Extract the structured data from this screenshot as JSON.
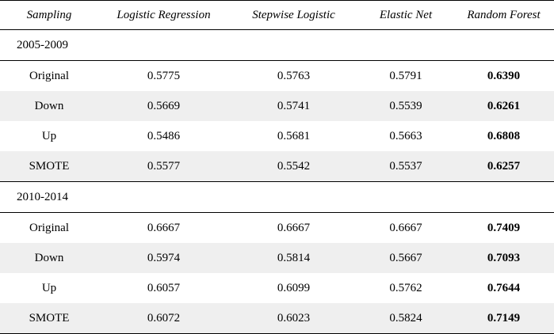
{
  "headers": [
    "Sampling",
    "Logistic Regression",
    "Stepwise Logistic",
    "Elastic Net",
    "Random Forest"
  ],
  "groups": [
    {
      "period": "2005-2009",
      "rows": [
        {
          "sampling": "Original",
          "lr": "0.5775",
          "sl": "0.5763",
          "en": "0.5791",
          "rf": "0.6390"
        },
        {
          "sampling": "Down",
          "lr": "0.5669",
          "sl": "0.5741",
          "en": "0.5539",
          "rf": "0.6261"
        },
        {
          "sampling": "Up",
          "lr": "0.5486",
          "sl": "0.5681",
          "en": "0.5663",
          "rf": "0.6808"
        },
        {
          "sampling": "SMOTE",
          "lr": "0.5577",
          "sl": "0.5542",
          "en": "0.5537",
          "rf": "0.6257"
        }
      ]
    },
    {
      "period": "2010-2014",
      "rows": [
        {
          "sampling": "Original",
          "lr": "0.6667",
          "sl": "0.6667",
          "en": "0.6667",
          "rf": "0.7409"
        },
        {
          "sampling": "Down",
          "lr": "0.5974",
          "sl": "0.5814",
          "en": "0.5667",
          "rf": "0.7093"
        },
        {
          "sampling": "Up",
          "lr": "0.6057",
          "sl": "0.6099",
          "en": "0.5762",
          "rf": "0.7644"
        },
        {
          "sampling": "SMOTE",
          "lr": "0.6072",
          "sl": "0.6023",
          "en": "0.5824",
          "rf": "0.7149"
        }
      ]
    }
  ]
}
